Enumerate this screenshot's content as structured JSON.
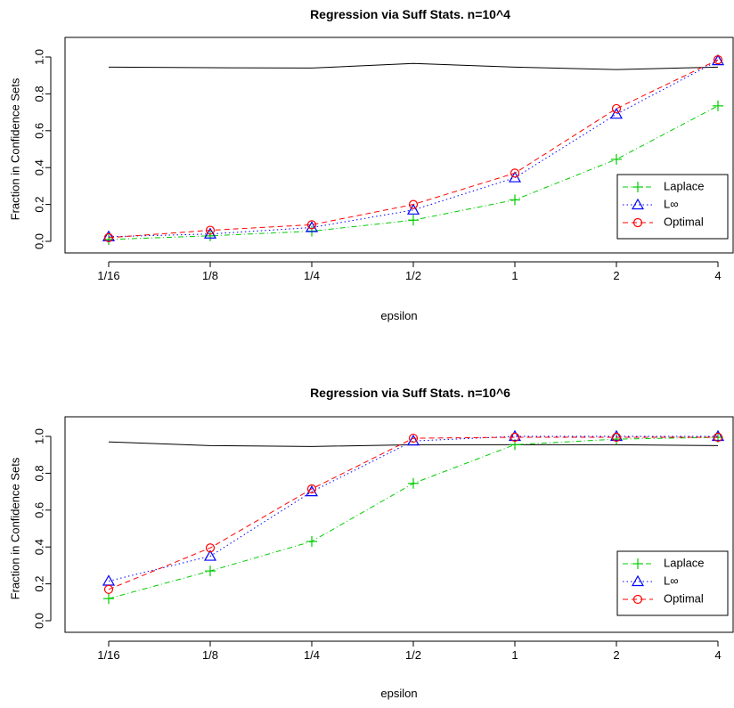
{
  "chart_data": [
    {
      "type": "line",
      "title": "Regression via Suff Stats. n=10^4",
      "xlabel": "epsilon",
      "ylabel": "Fraction in Confidence Sets",
      "categories": [
        "1/16",
        "1/8",
        "1/4",
        "1/2",
        "1",
        "2",
        "4"
      ],
      "yticks": [
        "0.0",
        "0.2",
        "0.4",
        "0.6",
        "0.8",
        "1.0"
      ],
      "ylim": [
        0,
        1
      ],
      "grid": false,
      "legend_position": "bottom-right",
      "reference_line": [
        0.945,
        0.942,
        0.94,
        0.965,
        0.945,
        0.932,
        0.945
      ],
      "series": [
        {
          "name": "Laplace",
          "color": "#00cc00",
          "marker": "plus",
          "dash": "dash-dot",
          "values": [
            0.01,
            0.03,
            0.055,
            0.115,
            0.225,
            0.445,
            0.735
          ]
        },
        {
          "name": "L∞",
          "color": "#0000ff",
          "marker": "triangle",
          "dash": "dotted",
          "values": [
            0.025,
            0.04,
            0.075,
            0.17,
            0.345,
            0.69,
            0.98
          ]
        },
        {
          "name": "Optimal",
          "color": "#ff0000",
          "marker": "circle",
          "dash": "dashed",
          "values": [
            0.02,
            0.06,
            0.09,
            0.2,
            0.37,
            0.72,
            0.985
          ]
        }
      ]
    },
    {
      "type": "line",
      "title": "Regression via Suff Stats. n=10^6",
      "xlabel": "epsilon",
      "ylabel": "Fraction in Confidence Sets",
      "categories": [
        "1/16",
        "1/8",
        "1/4",
        "1/2",
        "1",
        "2",
        "4"
      ],
      "yticks": [
        "0.0",
        "0.2",
        "0.4",
        "0.6",
        "0.8",
        "1.0"
      ],
      "ylim": [
        0,
        1
      ],
      "grid": false,
      "legend_position": "bottom-right",
      "reference_line": [
        0.97,
        0.95,
        0.945,
        0.955,
        0.955,
        0.955,
        0.95
      ],
      "series": [
        {
          "name": "Laplace",
          "color": "#00cc00",
          "marker": "plus",
          "dash": "dash-dot",
          "values": [
            0.12,
            0.27,
            0.43,
            0.745,
            0.955,
            0.985,
            0.995
          ]
        },
        {
          "name": "L∞",
          "color": "#0000ff",
          "marker": "triangle",
          "dash": "dotted",
          "values": [
            0.215,
            0.35,
            0.7,
            0.975,
            1.0,
            1.0,
            1.0
          ]
        },
        {
          "name": "Optimal",
          "color": "#ff0000",
          "marker": "circle",
          "dash": "dashed",
          "values": [
            0.17,
            0.395,
            0.715,
            0.99,
            0.995,
            0.995,
            0.995
          ]
        }
      ]
    }
  ]
}
